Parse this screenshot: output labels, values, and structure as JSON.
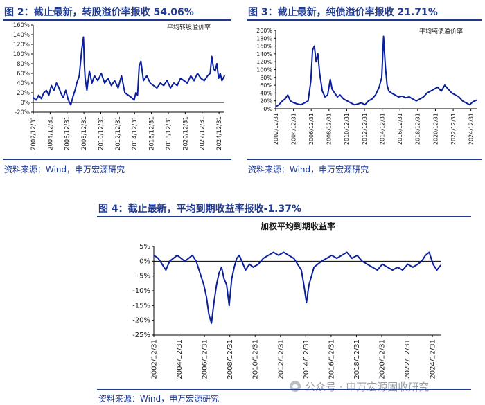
{
  "figures": {
    "fig2": {
      "title": "图 2：截止最新，转股溢价率报收 54.06%",
      "source": "资料来源：Wind，申万宏源研究"
    },
    "fig3": {
      "title": "图 3：截止最新，纯债溢价率报收 21.71%",
      "source": "资料来源：Wind，申万宏源研究"
    },
    "fig4": {
      "title": "图 4：截止最新，平均到期收益率报收-1.37%",
      "source": "资料来源：Wind，申万宏源研究"
    }
  },
  "watermark": {
    "text": "公众号 · 申万宏源固收研究"
  },
  "colors": {
    "line": "#0a1f9c",
    "title": "#1f3a93",
    "axis": "#000000",
    "grid": "#c8c8c8"
  },
  "chart_data": [
    {
      "id": "fig2",
      "type": "line",
      "title": "",
      "legend": "平均转股溢价率",
      "legend_position": "top-right",
      "ylim": [
        -20,
        160
      ],
      "yticks": [
        -20,
        0,
        20,
        40,
        60,
        80,
        100,
        120,
        140,
        160
      ],
      "ytick_labels": [
        "-20%",
        "0%",
        "20%",
        "40%",
        "60%",
        "80%",
        "100%",
        "120%",
        "140%",
        "160%"
      ],
      "xticks": [
        "2002/12/31",
        "2004/12/31",
        "2006/12/31",
        "2008/12/31",
        "2010/12/31",
        "2012/12/31",
        "2014/12/31",
        "2016/12/31",
        "2018/12/31",
        "2020/12/31",
        "2022/12/31",
        "2024/12/31"
      ],
      "xlim": [
        2002.95,
        2025.6
      ],
      "grid": false,
      "series": [
        {
          "name": "平均转股溢价率",
          "x": [
            2002.95,
            2003.3,
            2003.6,
            2003.9,
            2004.2,
            2004.5,
            2004.8,
            2005.1,
            2005.4,
            2005.7,
            2006.0,
            2006.2,
            2006.5,
            2006.8,
            2007.1,
            2007.4,
            2007.7,
            2007.9,
            2008.1,
            2008.4,
            2008.7,
            2008.9,
            2009.0,
            2009.1,
            2009.3,
            2009.6,
            2009.9,
            2010.2,
            2010.6,
            2011.0,
            2011.4,
            2011.8,
            2012.2,
            2012.6,
            2013.0,
            2013.4,
            2013.8,
            2014.2,
            2014.6,
            2014.9,
            2015.1,
            2015.3,
            2015.5,
            2015.7,
            2016.0,
            2016.4,
            2016.8,
            2017.2,
            2017.6,
            2018.0,
            2018.4,
            2018.8,
            2019.2,
            2019.6,
            2020.0,
            2020.4,
            2020.8,
            2021.2,
            2021.6,
            2022.0,
            2022.4,
            2022.8,
            2023.2,
            2023.6,
            2023.9,
            2024.1,
            2024.3,
            2024.5,
            2024.7,
            2024.9,
            2025.1,
            2025.3,
            2025.6
          ],
          "y": [
            10,
            5,
            15,
            8,
            20,
            25,
            15,
            35,
            25,
            40,
            30,
            20,
            10,
            25,
            5,
            -5,
            15,
            25,
            40,
            55,
            110,
            135,
            80,
            50,
            25,
            65,
            40,
            55,
            45,
            60,
            40,
            50,
            35,
            45,
            30,
            55,
            20,
            15,
            10,
            5,
            20,
            15,
            75,
            85,
            45,
            55,
            40,
            35,
            30,
            40,
            35,
            45,
            30,
            40,
            35,
            50,
            45,
            40,
            55,
            45,
            60,
            50,
            45,
            55,
            60,
            95,
            70,
            65,
            80,
            50,
            60,
            45,
            55
          ]
        }
      ]
    },
    {
      "id": "fig3",
      "type": "line",
      "title": "",
      "legend": "平均纯债溢价率",
      "legend_position": "top-right",
      "ylim": [
        0,
        200
      ],
      "yticks": [
        0,
        20,
        40,
        60,
        80,
        100,
        120,
        140,
        160,
        180,
        200
      ],
      "ytick_labels": [
        "0%",
        "20%",
        "40%",
        "60%",
        "80%",
        "100%",
        "120%",
        "140%",
        "160%",
        "180%",
        "200%"
      ],
      "xticks": [
        "2002/12/31",
        "2004/12/31",
        "2006/12/31",
        "2008/12/31",
        "2010/12/31",
        "2012/12/31",
        "2014/12/31",
        "2016/12/31",
        "2018/12/31",
        "2020/12/31",
        "2022/12/31",
        "2024/12/31"
      ],
      "xlim": [
        2002.95,
        2025.6
      ],
      "grid": false,
      "series": [
        {
          "name": "平均纯债溢价率",
          "x": [
            2002.95,
            2003.3,
            2003.7,
            2004.0,
            2004.3,
            2004.6,
            2005.0,
            2005.4,
            2005.8,
            2006.2,
            2006.6,
            2006.9,
            2007.1,
            2007.3,
            2007.5,
            2007.7,
            2007.9,
            2008.2,
            2008.5,
            2008.8,
            2009.1,
            2009.3,
            2009.6,
            2009.9,
            2010.2,
            2010.6,
            2011.0,
            2011.4,
            2011.8,
            2012.2,
            2012.6,
            2013.0,
            2013.4,
            2013.8,
            2014.2,
            2014.6,
            2014.9,
            2015.1,
            2015.3,
            2015.5,
            2015.7,
            2016.0,
            2016.4,
            2016.8,
            2017.2,
            2017.6,
            2018.0,
            2018.4,
            2018.8,
            2019.2,
            2019.6,
            2020.0,
            2020.4,
            2020.8,
            2021.2,
            2021.6,
            2022.0,
            2022.4,
            2022.8,
            2023.2,
            2023.6,
            2024.0,
            2024.4,
            2024.8,
            2025.2,
            2025.6
          ],
          "y": [
            5,
            10,
            20,
            25,
            35,
            20,
            15,
            12,
            10,
            15,
            20,
            70,
            150,
            160,
            120,
            140,
            90,
            45,
            30,
            35,
            75,
            50,
            40,
            30,
            35,
            25,
            20,
            15,
            10,
            12,
            15,
            10,
            20,
            25,
            35,
            55,
            80,
            185,
            110,
            60,
            45,
            40,
            35,
            30,
            32,
            28,
            30,
            25,
            20,
            25,
            30,
            40,
            45,
            50,
            55,
            45,
            60,
            50,
            40,
            35,
            30,
            20,
            15,
            10,
            18,
            22
          ]
        }
      ]
    },
    {
      "id": "fig4",
      "type": "line",
      "title": "加权平均到期收益率",
      "legend_position": "top",
      "ylim": [
        -25,
        5
      ],
      "yticks": [
        -25,
        -20,
        -15,
        -10,
        -5,
        0,
        5
      ],
      "ytick_labels": [
        "-25%",
        "-20%",
        "-15%",
        "-10%",
        "-5%",
        "0%",
        "5%"
      ],
      "xticks": [
        "2002/12/31",
        "2004/12/31",
        "2006/12/31",
        "2008/12/31",
        "2010/12/31",
        "2012/12/31",
        "2014/12/31",
        "2016/12/31",
        "2018/12/31",
        "2020/12/31",
        "2022/12/31",
        "2024/12/31"
      ],
      "xlim": [
        2002.95,
        2025.6
      ],
      "grid": false,
      "series": [
        {
          "name": "加权平均到期收益率",
          "x": [
            2002.95,
            2003.3,
            2003.6,
            2003.9,
            2004.2,
            2004.5,
            2004.8,
            2005.1,
            2005.4,
            2005.7,
            2006.0,
            2006.3,
            2006.6,
            2006.9,
            2007.1,
            2007.3,
            2007.5,
            2007.7,
            2007.9,
            2008.1,
            2008.3,
            2008.5,
            2008.7,
            2008.9,
            2009.1,
            2009.3,
            2009.5,
            2009.7,
            2009.9,
            2010.2,
            2010.5,
            2010.8,
            2011.2,
            2011.6,
            2012.0,
            2012.4,
            2012.8,
            2013.2,
            2013.6,
            2014.0,
            2014.3,
            2014.6,
            2014.8,
            2015.0,
            2015.2,
            2015.4,
            2015.6,
            2015.9,
            2016.2,
            2016.6,
            2017.0,
            2017.4,
            2017.8,
            2018.2,
            2018.6,
            2019.0,
            2019.4,
            2019.8,
            2020.2,
            2020.6,
            2021.0,
            2021.4,
            2021.8,
            2022.2,
            2022.6,
            2023.0,
            2023.4,
            2023.8,
            2024.1,
            2024.4,
            2024.7,
            2025.0,
            2025.3,
            2025.6
          ],
          "y": [
            2,
            1,
            -1,
            -3,
            0,
            1,
            2,
            1,
            0,
            1,
            2,
            0,
            -4,
            -8,
            -12,
            -18,
            -21,
            -14,
            -8,
            -4,
            -2,
            -6,
            -8,
            -15,
            -6,
            -2,
            1,
            2,
            0,
            -3,
            -1,
            -2,
            -1,
            1,
            2,
            3,
            2,
            3,
            2,
            1,
            -1,
            -3,
            -8,
            -14,
            -8,
            -5,
            -2,
            -1,
            0,
            1,
            2,
            1,
            2,
            3,
            1,
            2,
            0,
            -1,
            -2,
            -3,
            -1,
            -2,
            -3,
            -2,
            -3,
            -1,
            -2,
            -1,
            0,
            2,
            3,
            -1,
            -3,
            -1.37
          ]
        }
      ]
    }
  ]
}
